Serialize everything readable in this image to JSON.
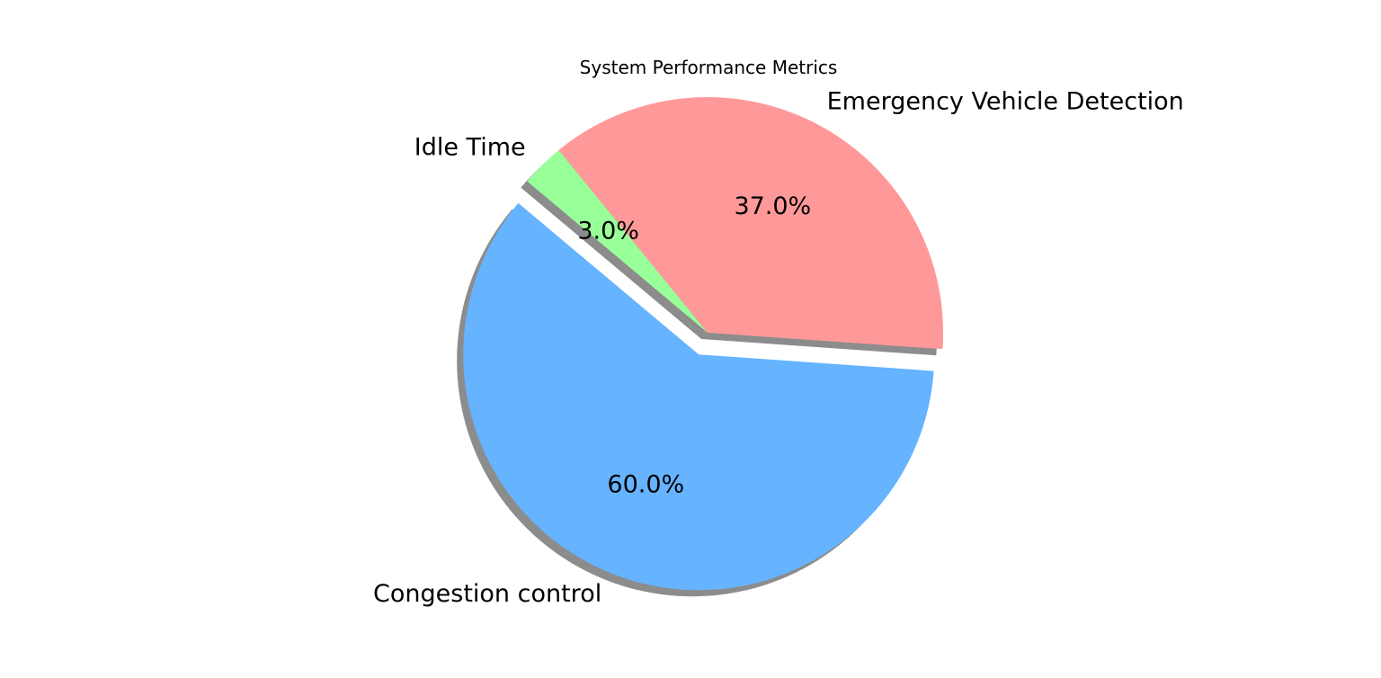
{
  "chart_data": {
    "type": "pie",
    "title": "System Performance Metrics",
    "slices": [
      {
        "label": "Congestion control",
        "value": 60.0,
        "pct_label": "60.0%",
        "color": "#66b3ff",
        "exploded": true
      },
      {
        "label": "Emergency Vehicle Detection",
        "value": 37.0,
        "pct_label": "37.0%",
        "color": "#ff9999",
        "exploded": false
      },
      {
        "label": "Idle Time",
        "value": 3.0,
        "pct_label": "3.0%",
        "color": "#99ff99",
        "exploded": false
      }
    ],
    "start_angle_deg": 140,
    "shadow": true,
    "legend": "none"
  }
}
